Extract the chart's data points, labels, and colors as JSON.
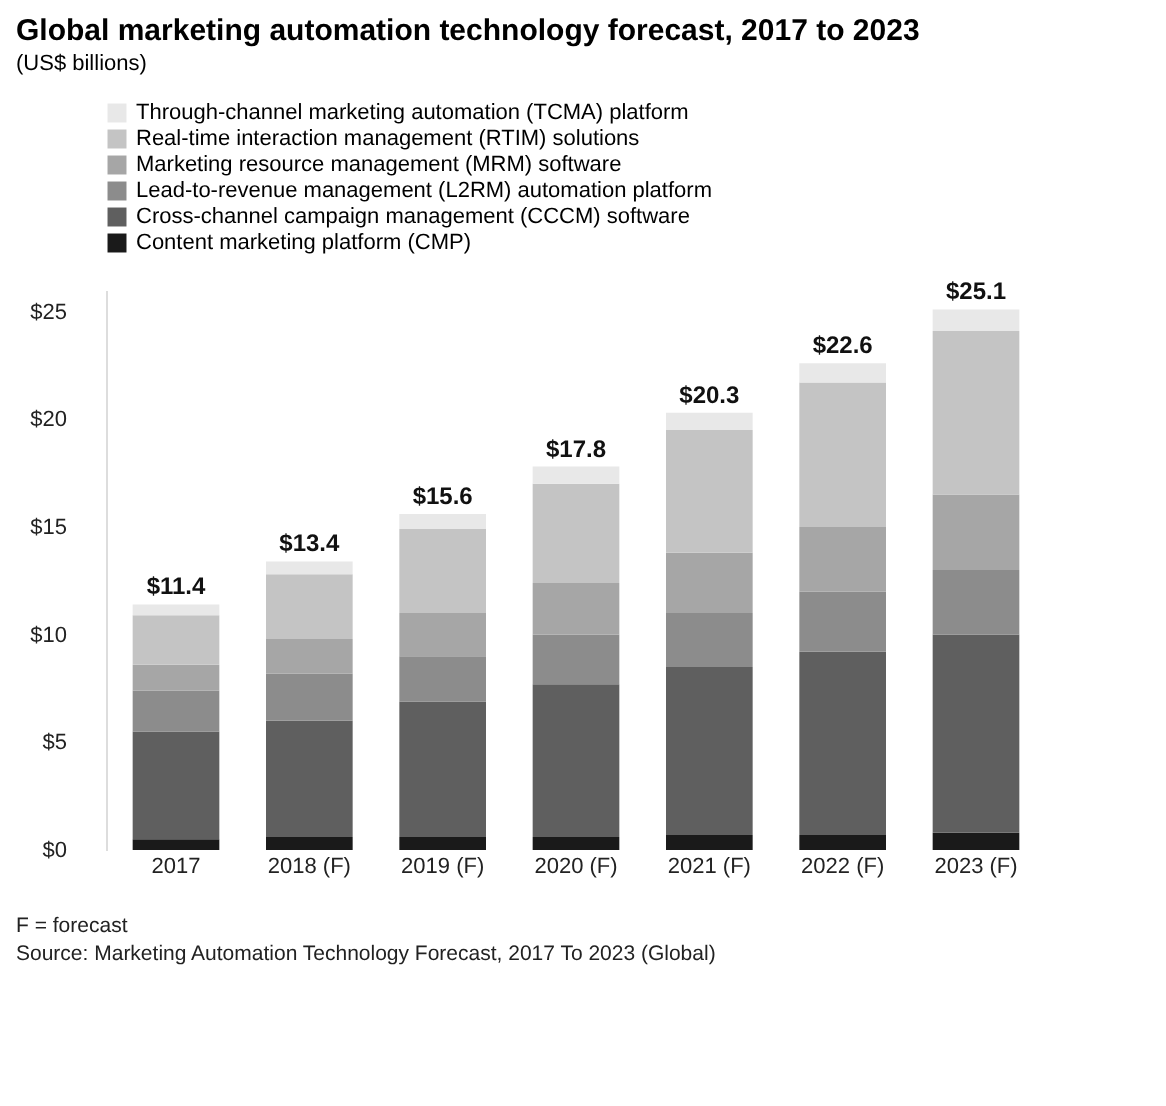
{
  "chart_data": {
    "type": "bar",
    "title": "Global marketing automation technology forecast, 2017 to 2023",
    "subtitle": "(US$ billions)",
    "categories": [
      "2017",
      "2018 (F)",
      "2019 (F)",
      "2020 (F)",
      "2021 (F)",
      "2022 (F)",
      "2023 (F)"
    ],
    "stacked": true,
    "series": [
      {
        "name": "Content marketing platform (CMP)",
        "color": "#1a1a1a",
        "values": [
          0.5,
          0.6,
          0.6,
          0.6,
          0.7,
          0.7,
          0.8
        ]
      },
      {
        "name": "Cross-channel campaign management (CCCM) software",
        "color": "#5f5f5f",
        "values": [
          5.0,
          5.4,
          6.3,
          7.1,
          7.8,
          8.5,
          9.2
        ]
      },
      {
        "name": "Lead-to-revenue management (L2RM) automation platform",
        "color": "#8c8c8c",
        "values": [
          1.9,
          2.2,
          2.1,
          2.3,
          2.5,
          2.8,
          3.0
        ]
      },
      {
        "name": "Marketing resource management (MRM) software",
        "color": "#a6a6a6",
        "values": [
          1.2,
          1.6,
          2.0,
          2.4,
          2.8,
          3.0,
          3.5
        ]
      },
      {
        "name": "Real-time interaction management (RTIM) solutions",
        "color": "#c4c4c4",
        "values": [
          2.3,
          3.0,
          3.9,
          4.6,
          5.7,
          6.7,
          7.6
        ]
      },
      {
        "name": "Through-channel marketing automation (TCMA) platform",
        "color": "#e8e8e8",
        "values": [
          0.5,
          0.6,
          0.7,
          0.8,
          0.8,
          0.9,
          1.0
        ]
      }
    ],
    "totals": [
      "$11.4",
      "$13.4",
      "$15.6",
      "$17.8",
      "$20.3",
      "$22.6",
      "$25.1"
    ],
    "ylim": [
      0,
      26
    ],
    "yticks": [
      {
        "value": 0,
        "label": "$0"
      },
      {
        "value": 5,
        "label": "$5"
      },
      {
        "value": 10,
        "label": "$10"
      },
      {
        "value": 15,
        "label": "$15"
      },
      {
        "value": 20,
        "label": "$20"
      },
      {
        "value": 25,
        "label": "$25"
      }
    ],
    "grid": false,
    "legend": "top",
    "annotations": [
      "F = forecast",
      "Source: Marketing Automation Technology Forecast, 2017 To 2023 (Global)"
    ]
  }
}
